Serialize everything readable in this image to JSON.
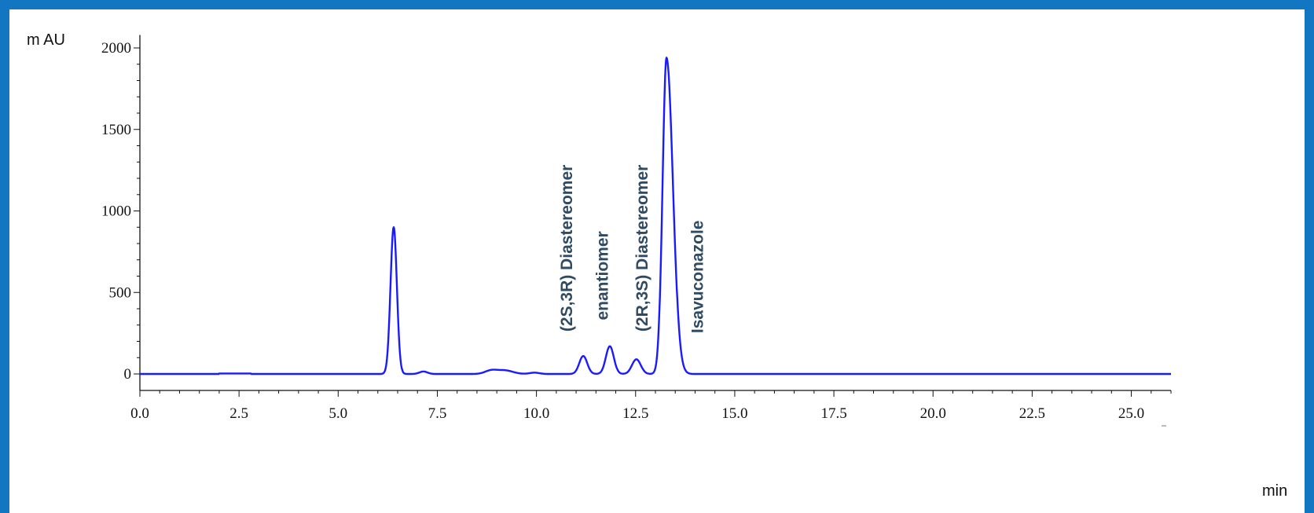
{
  "chart_data": {
    "type": "line",
    "ylabel": "m AU",
    "xlabel": "min",
    "xlim": [
      0,
      26
    ],
    "ylim": [
      -70,
      2070
    ],
    "x_ticks": [
      "0.0",
      "2.5",
      "5.0",
      "7.5",
      "10.0",
      "12.5",
      "15.0",
      "17.5",
      "20.0",
      "22.5",
      "25.0"
    ],
    "y_ticks": [
      "0",
      "500",
      "1000",
      "1500",
      "2000"
    ],
    "grid": false,
    "line_color": "#1a1aff",
    "label_color": "#2f4a63",
    "peaks": [
      {
        "rt": 6.4,
        "height": 900,
        "width": 0.08
      },
      {
        "rt": 7.15,
        "height": 15,
        "width": 0.1
      },
      {
        "rt": 8.85,
        "height": 20,
        "width": 0.15
      },
      {
        "rt": 9.2,
        "height": 22,
        "width": 0.2
      },
      {
        "rt": 9.95,
        "height": 8,
        "width": 0.12
      },
      {
        "rt": 11.18,
        "height": 110,
        "width": 0.1
      },
      {
        "rt": 11.85,
        "height": 170,
        "width": 0.1
      },
      {
        "rt": 12.52,
        "height": 90,
        "width": 0.11
      },
      {
        "rt": 13.28,
        "height": 1940,
        "width": 0.1
      }
    ],
    "annotations": [
      {
        "text": "(2S,3R) Diastereomer",
        "x": 10.9,
        "y": 260
      },
      {
        "text": "enantiomer",
        "x": 11.8,
        "y": 330
      },
      {
        "text": "(2R,3S) Diastereomer",
        "x": 12.8,
        "y": 260
      },
      {
        "text": "Isavuconazole",
        "x": 14.2,
        "y": 250
      }
    ]
  }
}
